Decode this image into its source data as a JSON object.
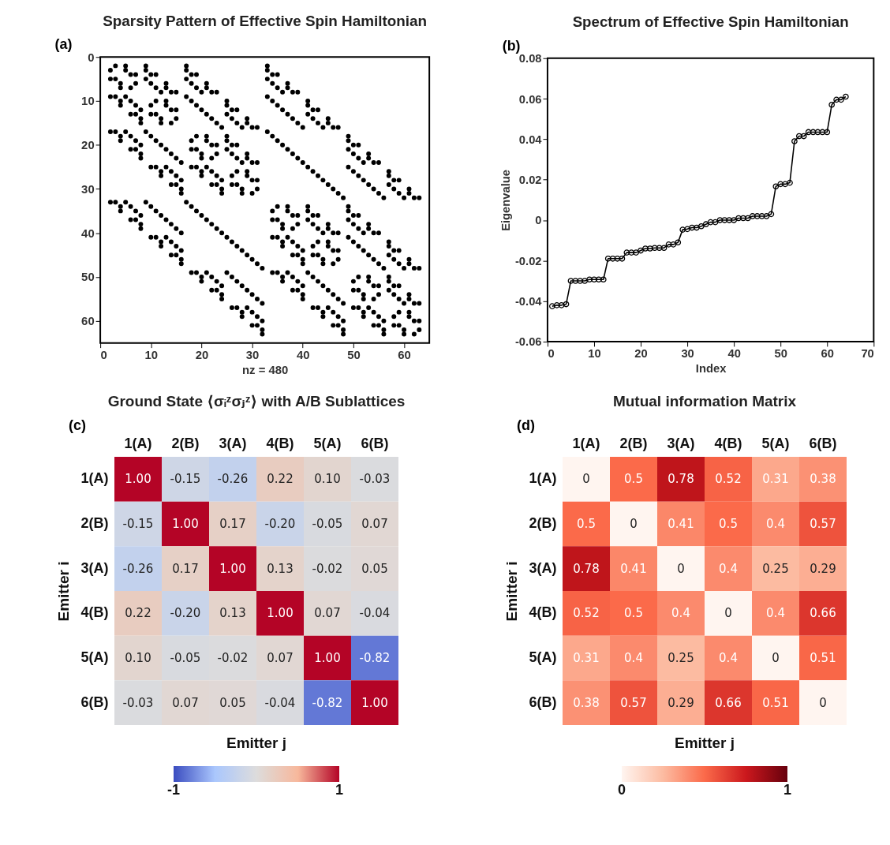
{
  "chart_data": [
    {
      "type": "scatter",
      "title": "Sparsity Pattern of Effective Spin Hamiltonian",
      "xlabel": "nz = 480",
      "annotations": [
        "(a)"
      ],
      "marker": "circle",
      "xlim": [
        0,
        65
      ],
      "ylim": [
        65,
        0
      ],
      "xticks": [
        0,
        10,
        20,
        30,
        40,
        50,
        60
      ],
      "yticks": [
        0,
        10,
        20,
        30,
        40,
        50,
        60
      ],
      "series": [
        {
          "color": "#000000",
          "x": [
            3,
            7,
            11,
            15,
            19,
            23,
            27,
            31,
            35,
            39,
            43,
            47,
            51,
            55,
            59,
            63,
            2,
            6,
            10,
            14,
            18,
            22,
            26,
            30,
            34,
            38,
            42,
            46,
            50,
            54,
            58,
            62,
            5,
            7,
            13,
            15,
            21,
            23,
            29,
            31,
            37,
            39,
            45,
            47,
            53,
            55,
            61,
            63,
            2,
            4,
            10,
            12,
            18,
            20,
            26,
            28,
            34,
            36,
            42,
            44,
            50,
            52,
            58,
            60,
            9,
            11,
            13,
            15,
            25,
            27,
            29,
            31,
            41,
            43,
            45,
            47,
            57,
            59,
            61,
            63,
            2,
            4,
            6,
            8,
            18,
            20,
            22,
            24,
            34,
            36,
            38,
            40,
            50,
            52,
            54,
            56,
            17,
            19,
            21,
            23,
            25,
            27,
            29,
            31,
            49,
            51,
            53,
            55,
            57,
            59,
            61,
            63,
            2,
            4,
            6,
            8,
            10,
            12,
            14,
            16,
            34,
            36,
            38,
            40,
            42,
            44,
            46,
            48,
            33,
            35,
            37,
            39,
            41,
            43,
            45,
            47,
            49,
            51,
            53,
            55,
            57,
            59,
            61,
            63,
            2,
            4,
            6,
            8,
            10,
            12,
            14,
            16,
            18,
            20,
            22,
            24,
            26,
            28,
            30,
            32,
            5,
            6,
            13,
            14,
            21,
            22,
            29,
            30,
            37,
            38,
            45,
            46,
            53,
            54,
            61,
            62,
            3,
            4,
            11,
            12,
            19,
            20,
            27,
            28,
            35,
            36,
            43,
            44,
            51,
            52,
            59,
            60,
            9,
            10,
            13,
            14,
            25,
            26,
            29,
            30,
            41,
            42,
            45,
            46,
            57,
            58,
            61,
            62,
            3,
            4,
            7,
            8,
            19,
            20,
            23,
            24,
            35,
            36,
            39,
            40,
            51,
            52,
            55,
            56,
            17,
            18,
            21,
            22,
            25,
            26,
            29,
            30,
            49,
            50,
            53,
            54,
            57,
            58,
            61,
            62,
            3,
            4,
            7,
            8,
            11,
            12,
            15,
            16,
            35,
            36,
            39,
            40,
            43,
            44,
            47,
            48,
            33,
            34,
            37,
            38,
            41,
            42,
            45,
            46,
            49,
            50,
            53,
            54,
            57,
            58,
            61,
            62,
            3,
            4,
            7,
            8,
            11,
            12,
            15,
            16,
            19,
            20,
            23,
            24,
            27,
            28,
            31,
            32,
            9,
            10,
            11,
            12,
            25,
            26,
            27,
            28,
            41,
            42,
            43,
            44,
            57,
            58,
            59,
            60,
            5,
            6,
            7,
            8,
            21,
            22,
            23,
            24,
            37,
            38,
            39,
            40,
            53,
            54,
            55,
            56,
            17,
            18,
            19,
            20,
            25,
            26,
            27,
            28,
            49,
            50,
            51,
            52,
            57,
            58,
            59,
            60,
            5,
            6,
            7,
            8,
            13,
            14,
            15,
            16,
            37,
            38,
            39,
            40,
            45,
            46,
            47,
            48,
            33,
            34,
            35,
            36,
            41,
            42,
            43,
            44,
            49,
            50,
            51,
            52,
            57,
            58,
            59,
            60,
            5,
            6,
            7,
            8,
            13,
            14,
            15,
            16,
            21,
            22,
            23,
            24,
            29,
            30,
            31,
            32,
            17,
            18,
            19,
            20,
            21,
            22,
            23,
            24,
            49,
            50,
            51,
            52,
            53,
            54,
            55,
            56,
            9,
            10,
            11,
            12,
            13,
            14,
            15,
            16,
            41,
            42,
            43,
            44,
            45,
            46,
            47,
            48,
            33,
            34,
            35,
            36,
            37,
            38,
            39,
            40,
            49,
            50,
            51,
            52,
            53,
            54,
            55,
            56,
            9,
            10,
            11,
            12,
            13,
            14,
            15,
            16,
            25,
            26,
            27,
            28,
            29,
            30,
            31,
            32,
            33,
            34,
            35,
            36,
            37,
            38,
            39,
            40,
            41,
            42,
            43,
            44,
            45,
            46,
            47,
            48,
            17,
            18,
            19,
            20,
            21,
            22,
            23,
            24,
            25,
            26,
            27,
            28,
            29,
            30,
            31,
            32
          ],
          "values": [
            2,
            6,
            10,
            14,
            18,
            22,
            26,
            30,
            34,
            38,
            42,
            46,
            50,
            54,
            58,
            62,
            3,
            7,
            11,
            15,
            19,
            23,
            27,
            31,
            35,
            39,
            43,
            47,
            51,
            55,
            59,
            63,
            2,
            4,
            10,
            12,
            18,
            20,
            26,
            28,
            34,
            36,
            42,
            44,
            50,
            52,
            58,
            60,
            5,
            7,
            13,
            15,
            21,
            23,
            29,
            31,
            37,
            39,
            45,
            47,
            53,
            55,
            61,
            63,
            2,
            4,
            6,
            8,
            18,
            20,
            22,
            24,
            34,
            36,
            38,
            40,
            50,
            52,
            54,
            56,
            9,
            11,
            13,
            15,
            25,
            27,
            29,
            31,
            41,
            43,
            45,
            47,
            57,
            59,
            61,
            63,
            2,
            4,
            6,
            8,
            10,
            12,
            14,
            16,
            34,
            36,
            38,
            40,
            42,
            44,
            46,
            48,
            17,
            19,
            21,
            23,
            25,
            27,
            29,
            31,
            49,
            51,
            53,
            55,
            57,
            59,
            61,
            63,
            2,
            4,
            6,
            8,
            10,
            12,
            14,
            16,
            18,
            20,
            22,
            24,
            26,
            28,
            30,
            32,
            33,
            35,
            37,
            39,
            41,
            43,
            45,
            47,
            49,
            51,
            53,
            55,
            57,
            59,
            61,
            63,
            3,
            4,
            11,
            12,
            19,
            20,
            27,
            28,
            35,
            36,
            43,
            44,
            51,
            52,
            59,
            60,
            5,
            6,
            13,
            14,
            21,
            22,
            29,
            30,
            37,
            38,
            45,
            46,
            53,
            54,
            61,
            62,
            3,
            4,
            7,
            8,
            19,
            20,
            23,
            24,
            35,
            36,
            39,
            40,
            51,
            52,
            55,
            56,
            9,
            10,
            13,
            14,
            25,
            26,
            29,
            30,
            41,
            42,
            45,
            46,
            57,
            58,
            61,
            62,
            3,
            4,
            7,
            8,
            11,
            12,
            15,
            16,
            35,
            36,
            39,
            40,
            43,
            44,
            47,
            48,
            17,
            18,
            21,
            22,
            25,
            26,
            29,
            30,
            49,
            50,
            53,
            54,
            57,
            58,
            61,
            62,
            3,
            4,
            7,
            8,
            11,
            12,
            15,
            16,
            19,
            20,
            23,
            24,
            27,
            28,
            31,
            32,
            33,
            34,
            37,
            38,
            41,
            42,
            45,
            46,
            49,
            50,
            53,
            54,
            57,
            58,
            61,
            62,
            5,
            6,
            7,
            8,
            21,
            22,
            23,
            24,
            37,
            38,
            39,
            40,
            53,
            54,
            55,
            56,
            9,
            10,
            11,
            12,
            25,
            26,
            27,
            28,
            41,
            42,
            43,
            44,
            57,
            58,
            59,
            60,
            5,
            6,
            7,
            8,
            13,
            14,
            15,
            16,
            37,
            38,
            39,
            40,
            45,
            46,
            47,
            48,
            17,
            18,
            19,
            20,
            25,
            26,
            27,
            28,
            49,
            50,
            51,
            52,
            57,
            58,
            59,
            60,
            5,
            6,
            7,
            8,
            13,
            14,
            15,
            16,
            21,
            22,
            23,
            24,
            29,
            30,
            31,
            32,
            33,
            34,
            35,
            36,
            41,
            42,
            43,
            44,
            49,
            50,
            51,
            52,
            57,
            58,
            59,
            60,
            9,
            10,
            11,
            12,
            13,
            14,
            15,
            16,
            41,
            42,
            43,
            44,
            45,
            46,
            47,
            48,
            17,
            18,
            19,
            20,
            21,
            22,
            23,
            24,
            49,
            50,
            51,
            52,
            53,
            54,
            55,
            56,
            9,
            10,
            11,
            12,
            13,
            14,
            15,
            16,
            25,
            26,
            27,
            28,
            29,
            30,
            31,
            32,
            33,
            34,
            35,
            36,
            37,
            38,
            39,
            40,
            49,
            50,
            51,
            52,
            53,
            54,
            55,
            56,
            17,
            18,
            19,
            20,
            21,
            22,
            23,
            24,
            25,
            26,
            27,
            28,
            29,
            30,
            31,
            32,
            33,
            34,
            35,
            36,
            37,
            38,
            39,
            40,
            41,
            42,
            43,
            44,
            45,
            46,
            47,
            48
          ]
        }
      ]
    },
    {
      "type": "line",
      "title": "Spectrum of Effective Spin Hamiltonian",
      "xlabel": "Index",
      "ylabel": "Eigenvalue",
      "annotations": [
        "(b)"
      ],
      "marker": "circle",
      "xlim": [
        0,
        70
      ],
      "ylim": [
        -0.06,
        0.08
      ],
      "xticks": [
        0,
        10,
        20,
        30,
        40,
        50,
        60,
        70
      ],
      "yticks": [
        -0.06,
        -0.04,
        -0.02,
        0,
        0.02,
        0.04,
        0.06,
        0.08
      ],
      "series": [
        {
          "color": "#000000",
          "x": [
            1,
            2,
            3,
            4,
            5,
            6,
            7,
            8,
            9,
            10,
            11,
            12,
            13,
            14,
            15,
            16,
            17,
            18,
            19,
            20,
            21,
            22,
            23,
            24,
            25,
            26,
            27,
            28,
            29,
            30,
            31,
            32,
            33,
            34,
            35,
            36,
            37,
            38,
            39,
            40,
            41,
            42,
            43,
            44,
            45,
            46,
            47,
            48,
            49,
            50,
            51,
            52,
            53,
            54,
            55,
            56,
            57,
            58,
            59,
            60,
            61,
            62,
            63,
            64
          ],
          "values": [
            -0.0425,
            -0.042,
            -0.042,
            -0.0415,
            -0.03,
            -0.03,
            -0.03,
            -0.03,
            -0.0293,
            -0.0293,
            -0.0293,
            -0.0293,
            -0.019,
            -0.019,
            -0.019,
            -0.019,
            -0.016,
            -0.016,
            -0.016,
            -0.015,
            -0.014,
            -0.014,
            -0.0137,
            -0.0137,
            -0.0137,
            -0.012,
            -0.012,
            -0.011,
            -0.0047,
            -0.0044,
            -0.0037,
            -0.0037,
            -0.003,
            -0.002,
            -0.001,
            -0.001,
            0,
            0,
            0,
            0,
            0.001,
            0.001,
            0.001,
            0.002,
            0.002,
            0.002,
            0.002,
            0.003,
            0.0167,
            0.0178,
            0.0178,
            0.0185,
            0.039,
            0.0415,
            0.0415,
            0.0435,
            0.0435,
            0.0435,
            0.0435,
            0.0435,
            0.057,
            0.0595,
            0.0595,
            0.061
          ]
        }
      ]
    },
    {
      "type": "heatmap",
      "title": "Ground State ⟨σᵢᶻσⱼᶻ⟩ with A/B Sublattices",
      "xlabel": "Emitter j",
      "ylabel": "Emitter i",
      "annotations": [
        "(c)"
      ],
      "categories": [
        "1(A)",
        "2(B)",
        "3(A)",
        "4(B)",
        "5(A)",
        "6(B)"
      ],
      "y_categories": [
        "1(A)",
        "2(B)",
        "3(A)",
        "4(B)",
        "5(A)",
        "6(B)"
      ],
      "cells": [
        [
          1,
          -0.15,
          -0.26,
          0.22,
          0.1,
          -0.03
        ],
        [
          -0.15,
          1,
          0.17,
          -0.2,
          -0.05,
          0.07
        ],
        [
          -0.26,
          0.17,
          1,
          0.13,
          -0.02,
          0.05
        ],
        [
          0.22,
          -0.2,
          0.13,
          1,
          0.07,
          -0.04
        ],
        [
          0.1,
          -0.05,
          -0.02,
          0.07,
          1,
          -0.82
        ],
        [
          -0.03,
          0.07,
          0.05,
          -0.04,
          -0.82,
          1
        ]
      ],
      "cell_labels": [
        [
          "1.00",
          "-0.15",
          "-0.26",
          "0.22",
          "0.10",
          "-0.03"
        ],
        [
          "-0.15",
          "1.00",
          "0.17",
          "-0.20",
          "-0.05",
          "0.07"
        ],
        [
          "-0.26",
          "0.17",
          "1.00",
          "0.13",
          "-0.02",
          "0.05"
        ],
        [
          "0.22",
          "-0.20",
          "0.13",
          "1.00",
          "0.07",
          "-0.04"
        ],
        [
          "0.10",
          "-0.05",
          "-0.02",
          "0.07",
          "1.00",
          "-0.82"
        ],
        [
          "-0.03",
          "0.07",
          "0.05",
          "-0.04",
          "-0.82",
          "1.00"
        ]
      ],
      "clim": [
        -1,
        1
      ],
      "cticks": [
        -1,
        1
      ],
      "colors": [
        "#3b4cc0",
        "#aac7fd",
        "#dddcdc",
        "#f7b89c",
        "#b40426"
      ]
    },
    {
      "type": "heatmap",
      "title": "Mutual information Matrix",
      "xlabel": "Emitter j",
      "ylabel": "Emitter i",
      "annotations": [
        "(d)"
      ],
      "categories": [
        "1(A)",
        "2(B)",
        "3(A)",
        "4(B)",
        "5(A)",
        "6(B)"
      ],
      "y_categories": [
        "1(A)",
        "2(B)",
        "3(A)",
        "4(B)",
        "5(A)",
        "6(B)"
      ],
      "cells": [
        [
          0,
          0.5,
          0.78,
          0.52,
          0.31,
          0.38
        ],
        [
          0.5,
          0,
          0.41,
          0.5,
          0.4,
          0.57
        ],
        [
          0.78,
          0.41,
          0,
          0.4,
          0.25,
          0.29
        ],
        [
          0.52,
          0.5,
          0.4,
          0,
          0.4,
          0.66
        ],
        [
          0.31,
          0.4,
          0.25,
          0.4,
          0,
          0.51
        ],
        [
          0.38,
          0.57,
          0.29,
          0.66,
          0.51,
          0
        ]
      ],
      "data_labels": true,
      "clim": [
        0,
        1
      ],
      "cticks": [
        0,
        1
      ],
      "colors": [
        "#fff5f0",
        "#fcbba1",
        "#fb6a4a",
        "#cb181d",
        "#67000d"
      ]
    }
  ]
}
